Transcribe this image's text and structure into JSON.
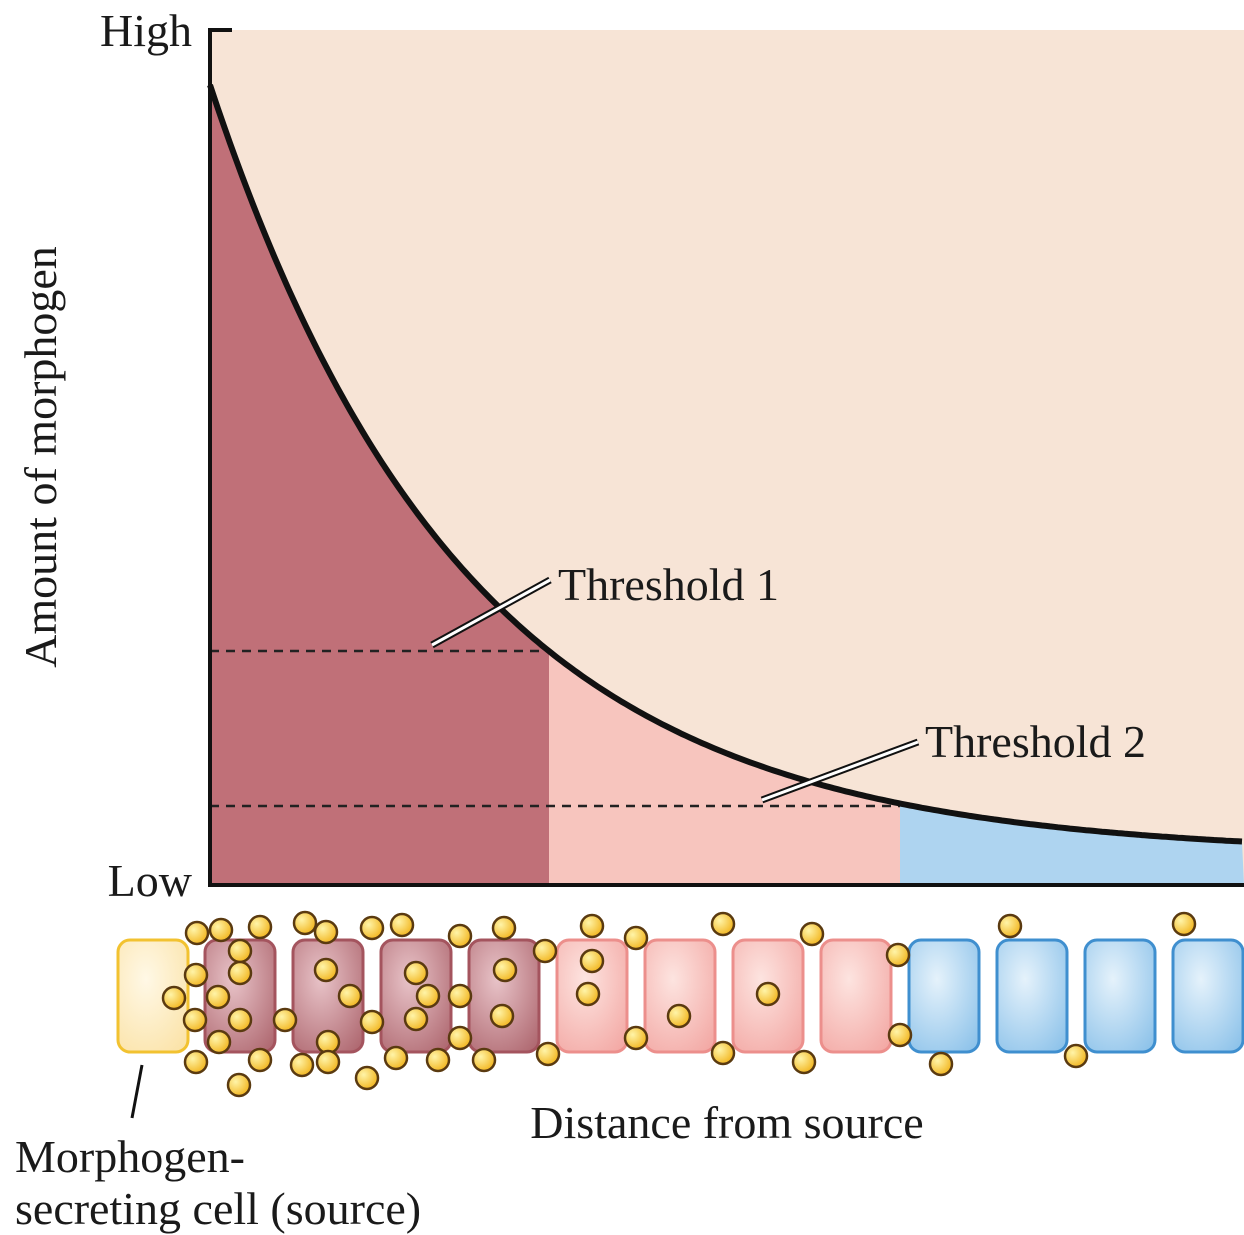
{
  "y_axis": {
    "label": "Amount of morphogen",
    "high": "High",
    "low": "Low"
  },
  "thresholds": [
    "Threshold 1",
    "Threshold 2"
  ],
  "x_axis": {
    "label": "Distance from source"
  },
  "source_label": [
    "Morphogen-",
    "secreting cell (source)"
  ]
}
